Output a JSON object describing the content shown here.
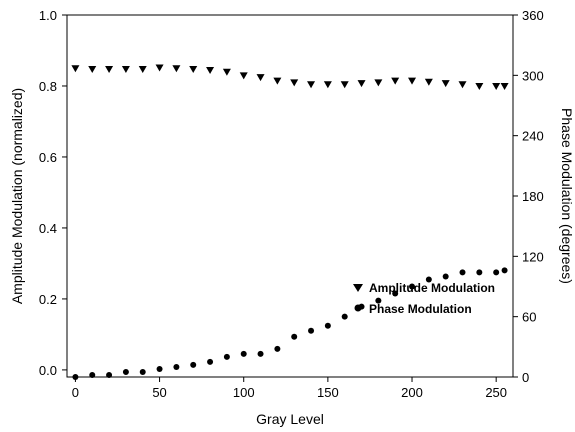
{
  "chart_data": {
    "type": "scatter",
    "xlabel": "Gray Level",
    "ylabel_left": "Amplitude Modulation (normalized)",
    "ylabel_right": "Phase Modulation (degrees)",
    "xlim": [
      -5,
      260
    ],
    "ylim_left": [
      -0.02,
      1.0
    ],
    "ylim_right": [
      0,
      360
    ],
    "x_ticks": [
      0,
      50,
      100,
      150,
      200,
      250
    ],
    "y_left_ticks": [
      "0.0",
      "0.2",
      "0.4",
      "0.6",
      "0.8",
      "1.0"
    ],
    "y_right_ticks": [
      "0",
      "60",
      "120",
      "180",
      "240",
      "300",
      "360"
    ],
    "legend_position": "right-middle",
    "series": [
      {
        "name": "Amplitude Modulation",
        "axis": "left",
        "marker": "triangle-down",
        "x": [
          0,
          10,
          20,
          30,
          40,
          50,
          60,
          70,
          80,
          90,
          100,
          110,
          120,
          130,
          140,
          150,
          160,
          170,
          180,
          190,
          200,
          210,
          220,
          230,
          240,
          250,
          255
        ],
        "y": [
          0.85,
          0.848,
          0.848,
          0.848,
          0.848,
          0.852,
          0.85,
          0.848,
          0.845,
          0.84,
          0.83,
          0.825,
          0.815,
          0.81,
          0.805,
          0.805,
          0.805,
          0.808,
          0.81,
          0.815,
          0.815,
          0.812,
          0.808,
          0.805,
          0.8,
          0.8,
          0.8
        ]
      },
      {
        "name": "Phase Modulation",
        "axis": "right",
        "marker": "circle",
        "x": [
          0,
          10,
          20,
          30,
          40,
          50,
          60,
          70,
          80,
          90,
          100,
          110,
          120,
          130,
          140,
          150,
          160,
          170,
          180,
          190,
          200,
          210,
          220,
          230,
          240,
          250,
          255
        ],
        "y": [
          0,
          2,
          2,
          5,
          5,
          8,
          10,
          12,
          15,
          20,
          23,
          23,
          28,
          40,
          46,
          51,
          60,
          70,
          76,
          83,
          90,
          97,
          100,
          104,
          104,
          104,
          106
        ]
      }
    ]
  }
}
